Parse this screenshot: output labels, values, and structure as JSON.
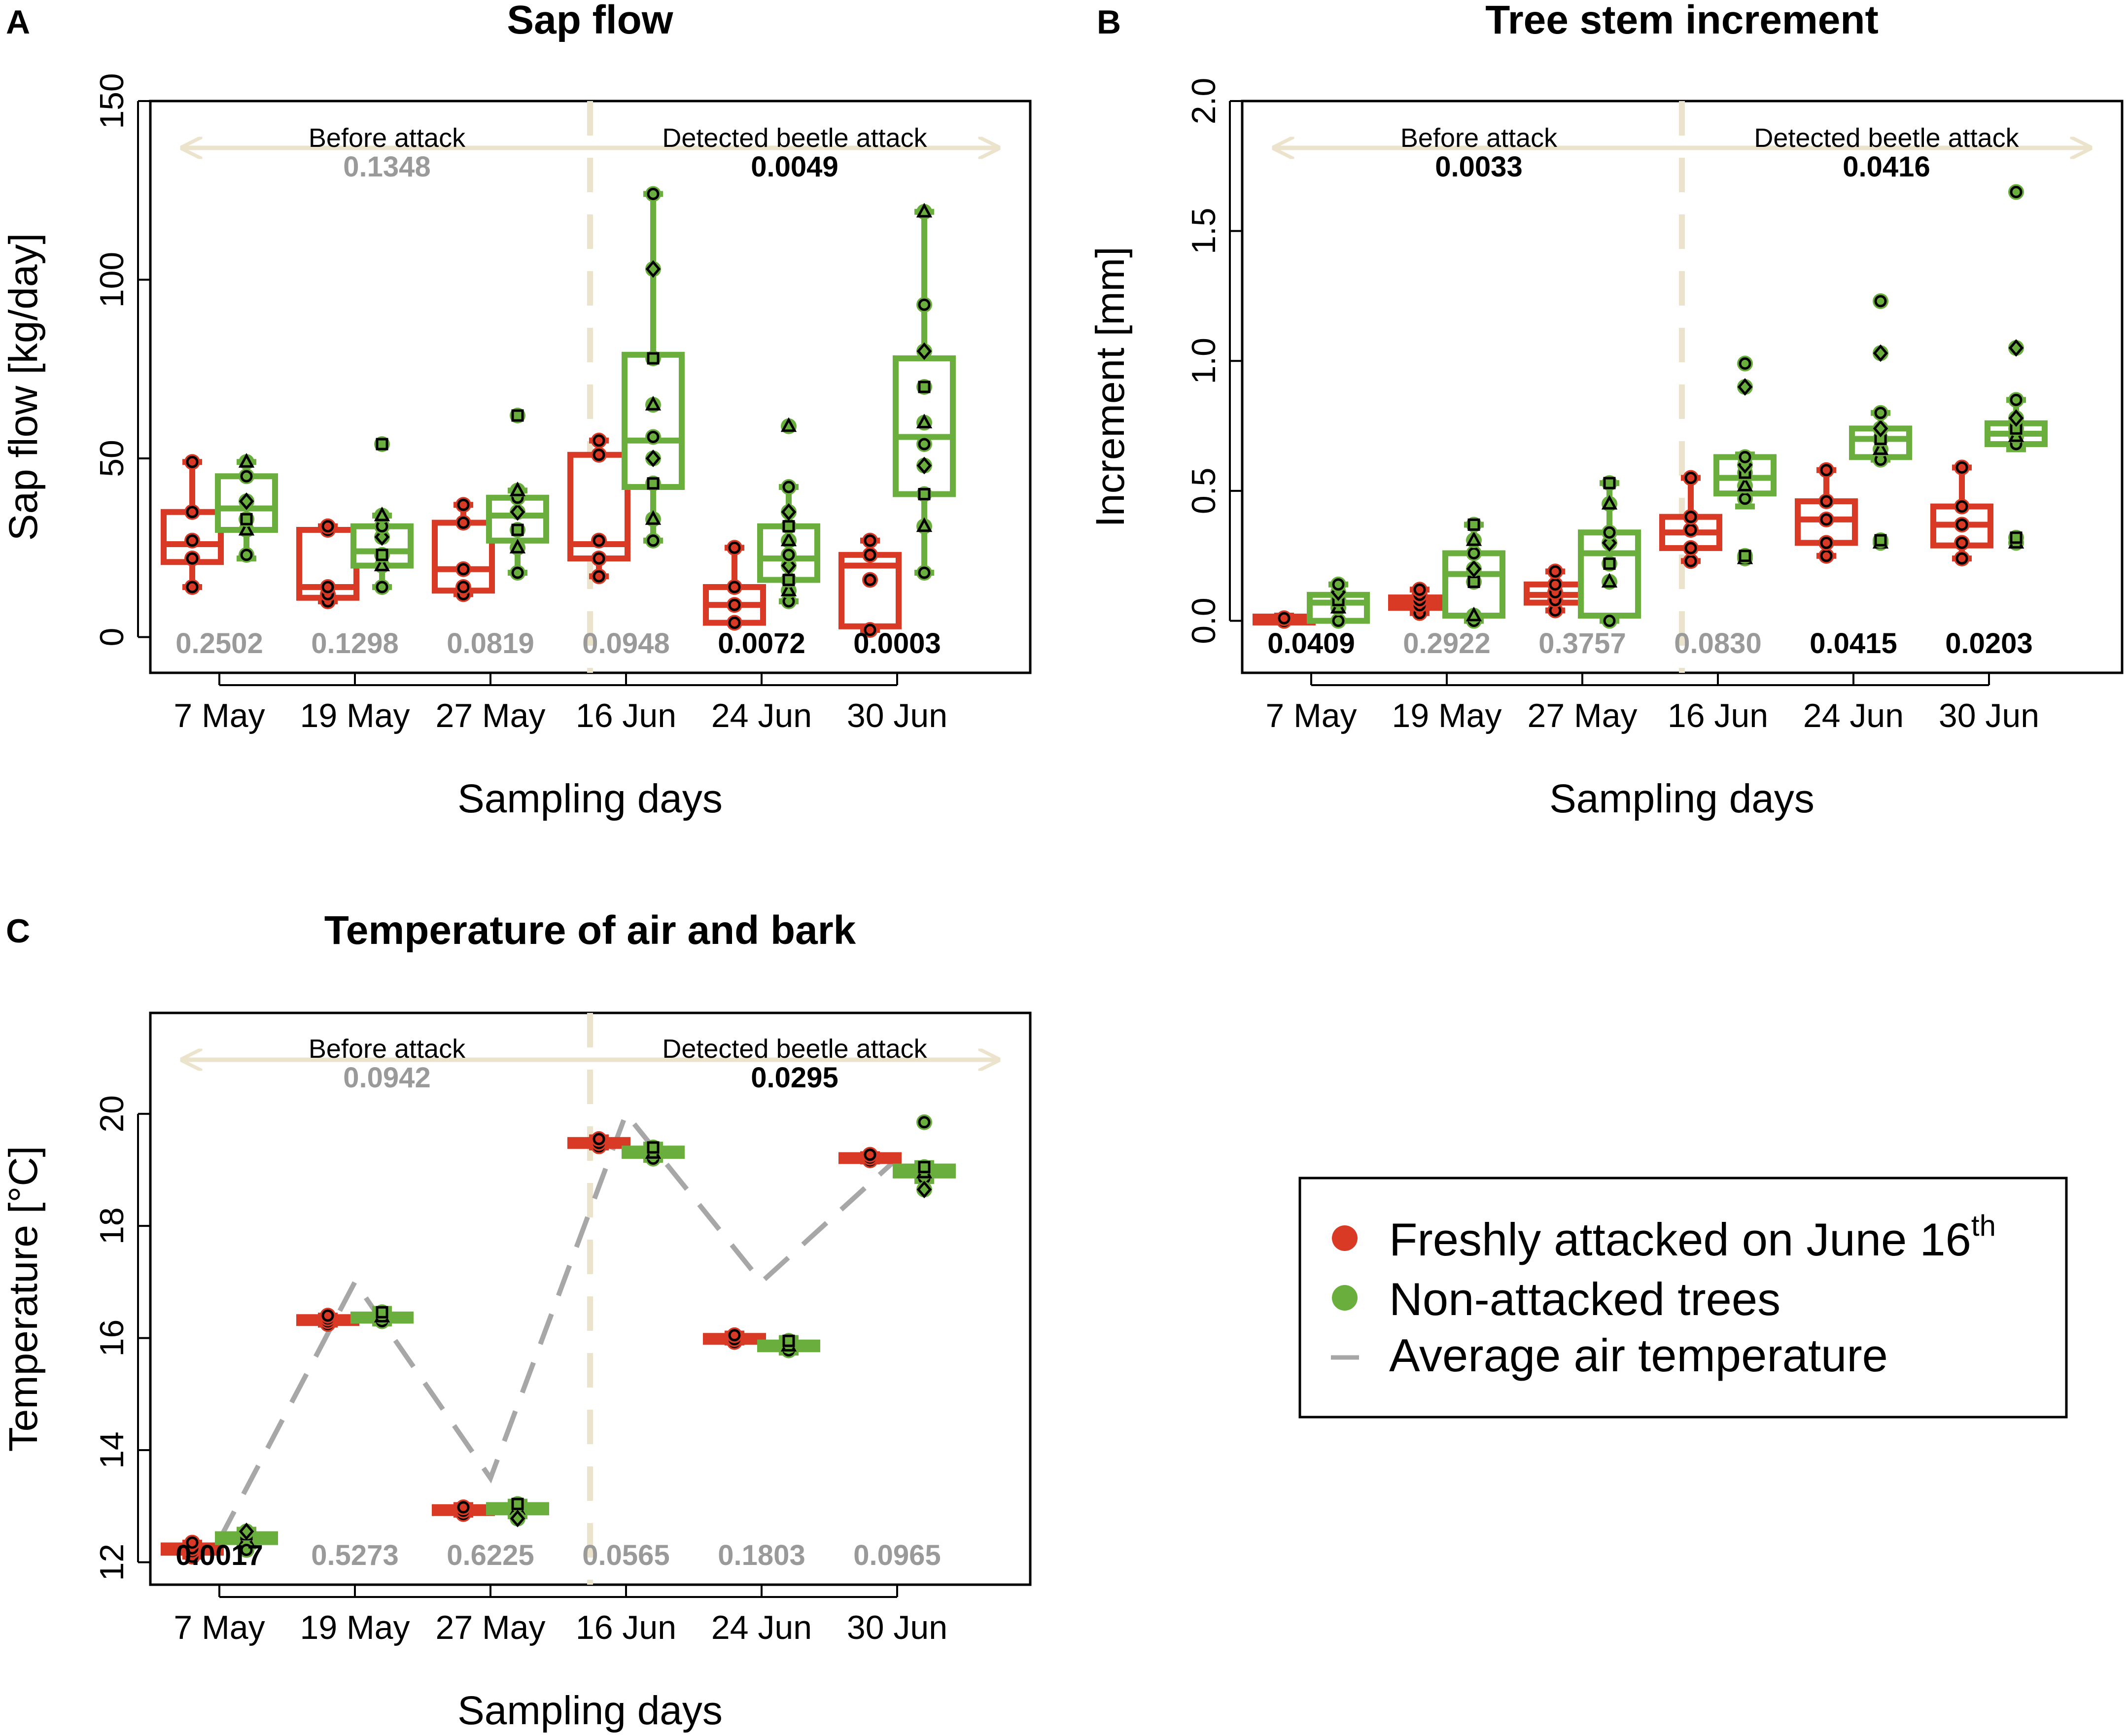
{
  "colors": {
    "attacked": "#d93a26",
    "non_attacked": "#6aaf3d",
    "air_temp": "#a7a7a7",
    "period_line": "#ece3cc",
    "significant": "#000000",
    "not_significant": "#9a9a9a"
  },
  "xlabel": "Sampling days",
  "period_labels": {
    "before": "Before attack",
    "after": "Detected beetle attack"
  },
  "legend": {
    "attacked_label": "Freshly attacked on June 16",
    "attacked_sup": "th",
    "non_attacked_label": "Non-attacked trees",
    "air_label": "Average air temperature"
  },
  "chart_data": [
    {
      "id": "A",
      "panel_letter": "A",
      "type": "box",
      "title": "Sap flow",
      "ylabel": "Sap flow [kg/day]",
      "ylim": [
        -10,
        150
      ],
      "yticks": [
        "0",
        "50",
        "100",
        "150"
      ],
      "ytick_values": [
        0,
        50,
        100,
        150
      ],
      "categories": [
        "7 May",
        "19 May",
        "27 May",
        "16 Jun",
        "24 Jun",
        "30 Jun"
      ],
      "period_p": [
        {
          "text": "0.1348",
          "significant": false
        },
        {
          "text": "0.0049",
          "significant": true
        }
      ],
      "day_p": [
        {
          "text": "0.2502",
          "significant": false
        },
        {
          "text": "0.1298",
          "significant": false
        },
        {
          "text": "0.0819",
          "significant": false
        },
        {
          "text": "0.0948",
          "significant": false
        },
        {
          "text": "0.0072",
          "significant": true
        },
        {
          "text": "0.0003",
          "significant": true
        }
      ],
      "series": [
        {
          "name": "Freshly attacked on June 16th",
          "color_key": "attacked",
          "boxes": [
            {
              "min": 14,
              "q1": 21,
              "median": 26,
              "q3": 35,
              "max": 49,
              "points": [
                14,
                22,
                27,
                35,
                49
              ]
            },
            {
              "min": 10,
              "q1": 11,
              "median": 14,
              "q3": 30,
              "max": 31,
              "points": [
                10,
                12,
                14,
                30,
                31
              ]
            },
            {
              "min": 12,
              "q1": 13,
              "median": 19,
              "q3": 32,
              "max": 37,
              "points": [
                12,
                14,
                19,
                32,
                37
              ]
            },
            {
              "min": 17,
              "q1": 22,
              "median": 26,
              "q3": 51,
              "max": 55,
              "points": [
                17,
                22,
                27,
                51,
                55
              ]
            },
            {
              "min": 4,
              "q1": 4,
              "median": 9,
              "q3": 14,
              "max": 25,
              "points": [
                4,
                9,
                14,
                25
              ]
            },
            {
              "min": 2,
              "q1": 3,
              "median": 20,
              "q3": 23,
              "max": 27,
              "points": [
                2,
                16,
                23,
                27
              ]
            }
          ]
        },
        {
          "name": "Non-attacked trees",
          "color_key": "non_attacked",
          "boxes": [
            {
              "min": 22,
              "q1": 30,
              "median": 36,
              "q3": 45,
              "max": 49,
              "points": [
                23,
                30,
                33,
                38,
                45,
                49
              ]
            },
            {
              "min": 14,
              "q1": 20,
              "median": 24,
              "q3": 31,
              "max": 34,
              "points": [
                14,
                20,
                23,
                28,
                31,
                34
              ],
              "outliers": [
                54
              ]
            },
            {
              "min": 18,
              "q1": 27,
              "median": 34,
              "q3": 39,
              "max": 41,
              "points": [
                18,
                25,
                30,
                35,
                39,
                41
              ],
              "outliers": [
                62
              ]
            },
            {
              "min": 27,
              "q1": 42,
              "median": 55,
              "q3": 79,
              "max": 124,
              "points": [
                27,
                33,
                43,
                50,
                56,
                65,
                78,
                103,
                124
              ]
            },
            {
              "min": 10,
              "q1": 16,
              "median": 22,
              "q3": 31,
              "max": 42,
              "points": [
                10,
                13,
                16,
                20,
                23,
                27,
                31,
                35,
                42
              ],
              "outliers": [
                59
              ]
            },
            {
              "min": 18,
              "q1": 40,
              "median": 56,
              "q3": 78,
              "max": 119,
              "points": [
                18,
                31,
                40,
                48,
                54,
                60,
                70,
                80,
                93,
                119
              ]
            }
          ]
        }
      ]
    },
    {
      "id": "B",
      "panel_letter": "B",
      "type": "box",
      "title": "Tree stem increment",
      "ylabel": "Increment [mm]",
      "ylim": [
        -0.2,
        2.0
      ],
      "yticks": [
        "0.0",
        "0.5",
        "1.0",
        "1.5",
        "2.0"
      ],
      "ytick_values": [
        0,
        0.5,
        1.0,
        1.5,
        2.0
      ],
      "categories": [
        "7 May",
        "19 May",
        "27 May",
        "16 Jun",
        "24 Jun",
        "30 Jun"
      ],
      "period_p": [
        {
          "text": "0.0033",
          "significant": true
        },
        {
          "text": "0.0416",
          "significant": true
        }
      ],
      "day_p": [
        {
          "text": "0.0409",
          "significant": true
        },
        {
          "text": "0.2922",
          "significant": false
        },
        {
          "text": "0.3757",
          "significant": false
        },
        {
          "text": "0.0830",
          "significant": false
        },
        {
          "text": "0.0415",
          "significant": true
        },
        {
          "text": "0.0203",
          "significant": true
        }
      ],
      "series": [
        {
          "name": "Freshly attacked on June 16th",
          "color_key": "attacked",
          "boxes": [
            {
              "min": 0.0,
              "q1": 0.0,
              "median": 0.0,
              "q3": 0.01,
              "max": 0.02,
              "points": [
                0.0,
                0.0,
                0.01
              ]
            },
            {
              "min": 0.03,
              "q1": 0.05,
              "median": 0.07,
              "q3": 0.09,
              "max": 0.12,
              "points": [
                0.03,
                0.06,
                0.08,
                0.1,
                0.12
              ]
            },
            {
              "min": 0.04,
              "q1": 0.07,
              "median": 0.1,
              "q3": 0.14,
              "max": 0.19,
              "points": [
                0.04,
                0.08,
                0.11,
                0.14,
                0.19
              ]
            },
            {
              "min": 0.23,
              "q1": 0.28,
              "median": 0.34,
              "q3": 0.4,
              "max": 0.55,
              "points": [
                0.23,
                0.28,
                0.35,
                0.4,
                0.55
              ]
            },
            {
              "min": 0.25,
              "q1": 0.3,
              "median": 0.39,
              "q3": 0.46,
              "max": 0.58,
              "points": [
                0.25,
                0.3,
                0.39,
                0.46,
                0.58
              ]
            },
            {
              "min": 0.24,
              "q1": 0.29,
              "median": 0.37,
              "q3": 0.44,
              "max": 0.59,
              "points": [
                0.24,
                0.3,
                0.37,
                0.44,
                0.59
              ]
            }
          ]
        },
        {
          "name": "Non-attacked trees",
          "color_key": "non_attacked",
          "boxes": [
            {
              "min": 0.0,
              "q1": 0.0,
              "median": 0.07,
              "q3": 0.1,
              "max": 0.14,
              "points": [
                0.0,
                0.05,
                0.08,
                0.11,
                0.14
              ]
            },
            {
              "min": 0.0,
              "q1": 0.02,
              "median": 0.18,
              "q3": 0.26,
              "max": 0.37,
              "points": [
                0.0,
                0.02,
                0.15,
                0.2,
                0.26,
                0.31,
                0.37
              ]
            },
            {
              "min": 0.0,
              "q1": 0.02,
              "median": 0.26,
              "q3": 0.34,
              "max": 0.53,
              "points": [
                0.0,
                0.15,
                0.22,
                0.3,
                0.34,
                0.45,
                0.53
              ]
            },
            {
              "min": 0.44,
              "q1": 0.49,
              "median": 0.55,
              "q3": 0.63,
              "max": 0.64,
              "points": [
                0.47,
                0.52,
                0.57,
                0.6,
                0.63
              ],
              "outliers": [
                0.24,
                0.25,
                0.9,
                0.99
              ]
            },
            {
              "min": 0.62,
              "q1": 0.63,
              "median": 0.7,
              "q3": 0.74,
              "max": 0.8,
              "points": [
                0.62,
                0.66,
                0.7,
                0.74,
                0.8
              ],
              "outliers": [
                0.3,
                0.31,
                1.03,
                1.23
              ]
            },
            {
              "min": 0.66,
              "q1": 0.68,
              "median": 0.72,
              "q3": 0.76,
              "max": 0.85,
              "points": [
                0.68,
                0.71,
                0.74,
                0.78,
                0.85
              ],
              "outliers": [
                0.3,
                0.32,
                1.05,
                1.65
              ]
            }
          ]
        }
      ]
    },
    {
      "id": "C",
      "panel_letter": "C",
      "type": "box",
      "title": "Temperature of air and bark",
      "ylabel": "Temperature [°C]",
      "ylim": [
        11.6,
        21.8
      ],
      "yticks": [
        "12",
        "14",
        "16",
        "18",
        "20"
      ],
      "ytick_values": [
        12,
        14,
        16,
        18,
        20
      ],
      "categories": [
        "7 May",
        "19 May",
        "27 May",
        "16 Jun",
        "24 Jun",
        "30 Jun"
      ],
      "period_p": [
        {
          "text": "0.0942",
          "significant": false
        },
        {
          "text": "0.0295",
          "significant": true
        }
      ],
      "day_p": [
        {
          "text": "0.0017",
          "significant": true
        },
        {
          "text": "0.5273",
          "significant": false
        },
        {
          "text": "0.6225",
          "significant": false
        },
        {
          "text": "0.0565",
          "significant": false
        },
        {
          "text": "0.1803",
          "significant": false
        },
        {
          "text": "0.0965",
          "significant": false
        }
      ],
      "air_temperature": [
        12.4,
        17.0,
        13.5,
        20.0,
        17.0,
        19.2
      ],
      "series": [
        {
          "name": "Freshly attacked on June 16th",
          "color_key": "attacked",
          "boxes": [
            {
              "min": 12.1,
              "q1": 12.17,
              "median": 12.23,
              "q3": 12.3,
              "max": 12.35,
              "points": [
                12.1,
                12.2,
                12.25,
                12.35
              ]
            },
            {
              "min": 16.24,
              "q1": 16.28,
              "median": 16.32,
              "q3": 16.36,
              "max": 16.4,
              "points": [
                16.25,
                16.3,
                16.35,
                16.4
              ]
            },
            {
              "min": 12.85,
              "q1": 12.89,
              "median": 12.93,
              "q3": 12.97,
              "max": 13.02,
              "points": [
                12.86,
                12.92,
                12.98
              ]
            },
            {
              "min": 19.4,
              "q1": 19.44,
              "median": 19.48,
              "q3": 19.52,
              "max": 19.58,
              "points": [
                19.42,
                19.48,
                19.55
              ]
            },
            {
              "min": 15.92,
              "q1": 15.95,
              "median": 15.98,
              "q3": 16.02,
              "max": 16.08,
              "points": [
                15.93,
                15.98,
                16.05
              ]
            },
            {
              "min": 19.15,
              "q1": 19.18,
              "median": 19.21,
              "q3": 19.24,
              "max": 19.28,
              "points": [
                19.17,
                19.22,
                19.27
              ]
            }
          ]
        },
        {
          "name": "Non-attacked trees",
          "color_key": "non_attacked",
          "boxes": [
            {
              "min": 12.28,
              "q1": 12.36,
              "median": 12.43,
              "q3": 12.5,
              "max": 12.58,
              "points": [
                12.3,
                12.4,
                12.5,
                12.55
              ],
              "outliers": [
                12.22
              ]
            },
            {
              "min": 16.26,
              "q1": 16.31,
              "median": 16.36,
              "q3": 16.42,
              "max": 16.52,
              "points": [
                16.3,
                16.38,
                16.46
              ]
            },
            {
              "min": 12.82,
              "q1": 12.89,
              "median": 12.95,
              "q3": 13.02,
              "max": 13.08,
              "points": [
                12.88,
                12.95,
                13.04
              ],
              "outliers": [
                12.78
              ]
            },
            {
              "min": 19.18,
              "q1": 19.25,
              "median": 19.32,
              "q3": 19.38,
              "max": 19.45,
              "points": [
                19.2,
                19.3,
                19.4
              ]
            },
            {
              "min": 15.74,
              "q1": 15.8,
              "median": 15.86,
              "q3": 15.92,
              "max": 16.0,
              "points": [
                15.78,
                15.86,
                15.95
              ]
            },
            {
              "min": 18.8,
              "q1": 18.9,
              "median": 18.98,
              "q3": 19.06,
              "max": 19.12,
              "points": [
                18.85,
                18.95,
                19.05
              ],
              "outliers": [
                18.65,
                19.85
              ]
            }
          ]
        }
      ]
    }
  ]
}
